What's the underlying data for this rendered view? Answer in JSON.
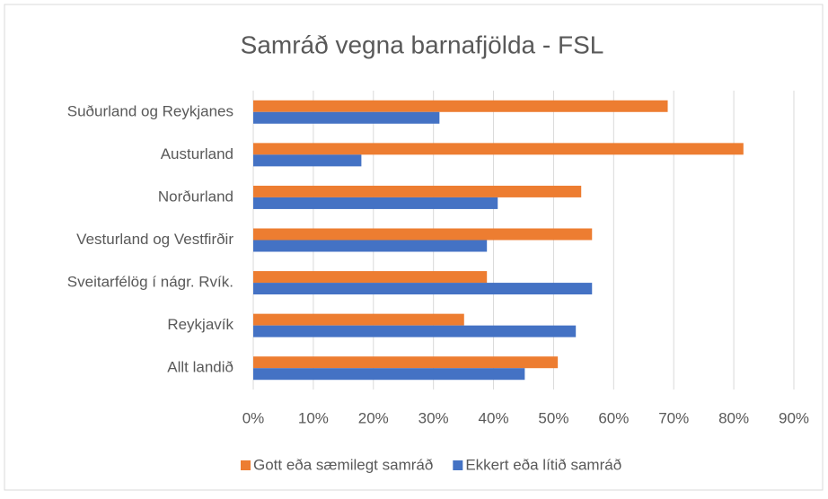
{
  "chart_data": {
    "type": "barh",
    "title": "Samráð vegna barnafjölda - FSL",
    "categories": [
      "Suðurland og Reykjanes",
      "Austurland",
      "Norðurland",
      "Vesturland og Vestfirðir",
      "Sveitarfélög í nágr. Rvík.",
      "Reykjavík",
      "Allt landið"
    ],
    "series": [
      {
        "name": "Gott eða sæmilegt samráð",
        "color": "#ed7d31",
        "values": [
          69,
          81.6,
          54.6,
          56.4,
          38.9,
          35.1,
          50.7
        ]
      },
      {
        "name": "Ekkert eða lítið samráð",
        "color": "#4472c4",
        "values": [
          31,
          18,
          40.7,
          38.9,
          56.4,
          53.7,
          45.2
        ]
      }
    ],
    "xlim": [
      0,
      90
    ],
    "xticks": [
      {
        "value": 0,
        "label": "0%"
      },
      {
        "value": 10,
        "label": "10%"
      },
      {
        "value": 20,
        "label": "20%"
      },
      {
        "value": 30,
        "label": "30%"
      },
      {
        "value": 40,
        "label": "40%"
      },
      {
        "value": 50,
        "label": "50%"
      },
      {
        "value": 60,
        "label": "60%"
      },
      {
        "value": 70,
        "label": "70%"
      },
      {
        "value": 80,
        "label": "80%"
      },
      {
        "value": 90,
        "label": "90%"
      }
    ],
    "grid": true,
    "legend": "bottom"
  }
}
